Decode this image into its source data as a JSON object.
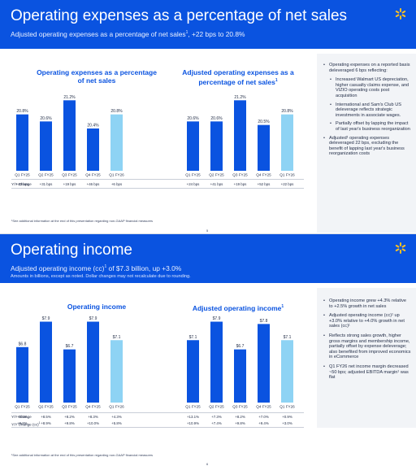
{
  "slide1": {
    "title": "Operating expenses as a percentage of net sales",
    "subtitle_main": "Adjusted operating expenses as a percentage of net sales",
    "subtitle_sup": "1",
    "subtitle_tail": ", +22 bps to 20.8%",
    "footnote": "¹See additional information at the end of this presentation regarding non-GAAP financial measures",
    "page_number": "5",
    "side_bullets": [
      {
        "text": "Operating expenses on a reported basis deleveraged 6 bps reflecting:",
        "level": 0
      },
      {
        "text": "Increased Walmart US depreciation, higher casualty claims expense, and VIZIO operating costs post acquisition",
        "level": 1
      },
      {
        "text": "International and Sam's Club US deleverage reflects strategic investments in associate wages.",
        "level": 1
      },
      {
        "text": "Partially offset by lapping the impact of last year's business reorganization",
        "level": 1
      },
      {
        "text": "Adjusted¹ operating expenses deleveraged 22 bps, excluding the benefit of lapping last year's business reorganization costs",
        "level": 0
      }
    ]
  },
  "slide2": {
    "title": "Operating income",
    "subtitle_main": "Adjusted operating income (cc)",
    "subtitle_sup": "1",
    "subtitle_tail": " of $7.3 billion, up +3.0%",
    "note": "Amounts in billions, except as noted. Dollar changes may not recalculate due to rounding.",
    "footnote": "¹See additional information at the end of this presentation regarding non-GAAP financial measures",
    "page_number": "6",
    "side_bullets": [
      {
        "text": "Operating income grew +4.3% relative to +2.5% growth in net sales",
        "level": 0
      },
      {
        "text": "Adjusted operating income (cc)¹ up +3.0% relative to +4.0% growth in net sales (cc)¹",
        "level": 0
      },
      {
        "text": "Reflects strong sales growth, higher gross margins and membership income, partially offset by expense deleverage; also benefited from improved economics in eCommerce",
        "level": 0
      },
      {
        "text": "Q1 FY26 net income margin decreased ~50 bps; adjusted EBITDA margin¹ was flat",
        "level": 0
      }
    ]
  },
  "chart_data": [
    {
      "id": "opex-reported",
      "type": "bar",
      "title": "Operating expenses as a percentage of net sales",
      "categories": [
        "Q1 FY25",
        "Q2 FY25",
        "Q3 FY25",
        "Q4 FY25",
        "Q1 FY26"
      ],
      "values": [
        20.8,
        20.6,
        21.2,
        20.4,
        20.8
      ],
      "labels": [
        "20.8%",
        "20.6%",
        "21.2%",
        "20.4%",
        "20.8%"
      ],
      "highlight_last": true,
      "ylim": [
        19.2,
        21.6
      ],
      "rows": [
        {
          "label": "Y/Y Change",
          "sup": "",
          "values": [
            "+40 bps",
            "+31 bps",
            "+19 bps",
            "+46 bps",
            "+6 bps"
          ]
        }
      ]
    },
    {
      "id": "opex-adjusted",
      "type": "bar",
      "title": "Adjusted operating expenses as a percentage of net sales",
      "title_sup": "1",
      "categories": [
        "Q1 FY25",
        "Q2 FY25",
        "Q3 FY25",
        "Q4 FY25",
        "Q1 FY26"
      ],
      "values": [
        20.6,
        20.6,
        21.2,
        20.5,
        20.8
      ],
      "labels": [
        "20.6%",
        "20.6%",
        "21.2%",
        "20.5%",
        "20.8%"
      ],
      "highlight_last": true,
      "ylim": [
        19.2,
        21.6
      ],
      "rows": [
        {
          "label": "",
          "sup": "",
          "values": [
            "+24 bps",
            "+41 bps",
            "+19 bps",
            "+52 bps",
            "+22 bps"
          ]
        }
      ]
    },
    {
      "id": "opinc-reported",
      "type": "bar",
      "title": "Operating income",
      "categories": [
        "Q1 FY25",
        "Q2 FY25",
        "Q3 FY25",
        "Q4 FY25",
        "Q1 FY26"
      ],
      "values": [
        6.8,
        7.9,
        6.7,
        7.9,
        7.1
      ],
      "labels": [
        "$6.8",
        "$7.9",
        "$6.7",
        "$7.9",
        "$7.1"
      ],
      "highlight_last": true,
      "ylim": [
        4.4,
        8.2
      ],
      "rows": [
        {
          "label": "Y/Y Change",
          "sup": "",
          "values": [
            "+9.6%",
            "+8.5%",
            "+8.2%",
            "+8.3%",
            "+4.3%"
          ]
        },
        {
          "label": "Y/Y Change (cc)",
          "sup": "1",
          "values": [
            "+5.8%",
            "+8.9%",
            "+9.8%",
            "+10.0%",
            "+5.8%"
          ]
        }
      ]
    },
    {
      "id": "opinc-adjusted",
      "type": "bar",
      "title": "Adjusted operating income",
      "title_sup": "1",
      "categories": [
        "Q1 FY25",
        "Q2 FY25",
        "Q3 FY25",
        "Q4 FY25",
        "Q1 FY26"
      ],
      "values": [
        7.1,
        7.9,
        6.7,
        7.8,
        7.1
      ],
      "labels": [
        "$7.1",
        "$7.9",
        "$6.7",
        "$7.8",
        "$7.1"
      ],
      "highlight_last": true,
      "ylim": [
        4.4,
        8.2
      ],
      "rows": [
        {
          "label": "",
          "sup": "",
          "values": [
            "+13.1%",
            "+7.3%",
            "+8.2%",
            "+7.0%",
            "+0.9%"
          ]
        },
        {
          "label": "",
          "sup": "",
          "values": [
            "+10.9%",
            "+7.4%",
            "+9.8%",
            "+9.4%",
            "+3.0%"
          ]
        }
      ]
    }
  ],
  "colors": {
    "brand_blue": "#0a53e0",
    "bar_blue": "#0a53e0",
    "bar_highlight": "#8ed3f4",
    "spark_yellow": "#ffc220"
  }
}
